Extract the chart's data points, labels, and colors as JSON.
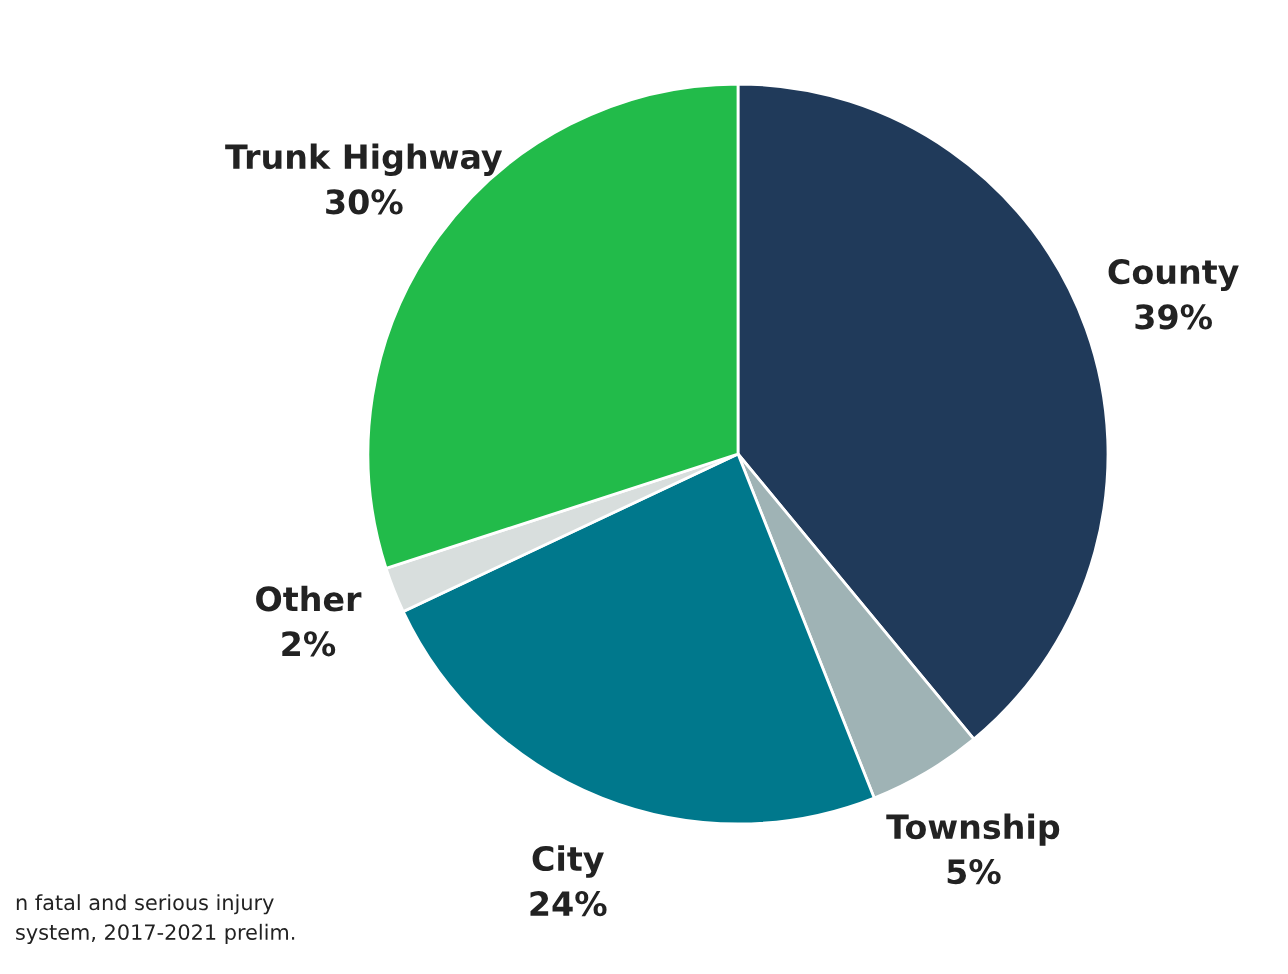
{
  "chart_data": {
    "type": "pie",
    "categories": [
      "County",
      "Township",
      "City",
      "Other",
      "Trunk Highway"
    ],
    "values": [
      39,
      5,
      24,
      2,
      30
    ],
    "value_labels": [
      "39%",
      "5%",
      "24%",
      "2%",
      "30%"
    ],
    "colors": [
      "#203a5a",
      "#9fb3b5",
      "#00788c",
      "#d8dedd",
      "#22bb4a"
    ],
    "annotations": [
      "n fatal and serious injury\nsystem, 2017-2021 prelim."
    ]
  }
}
